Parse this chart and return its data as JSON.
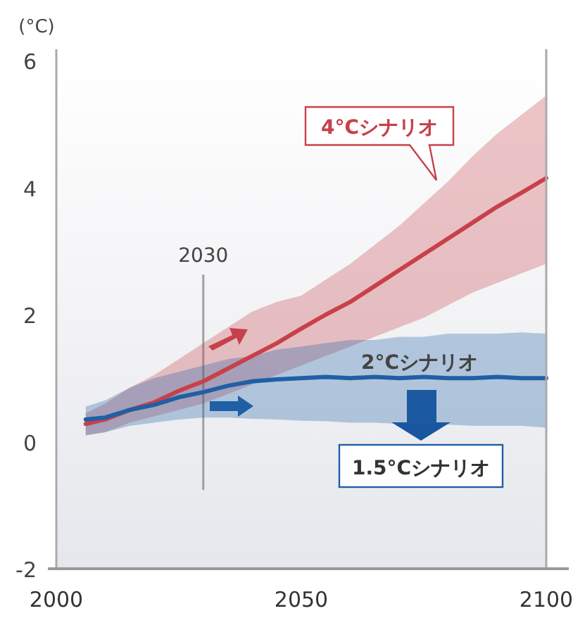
{
  "chart_data": {
    "type": "line",
    "ylabel": "(°C)",
    "x": [
      2006,
      2010,
      2015,
      2020,
      2025,
      2030,
      2035,
      2040,
      2045,
      2050,
      2055,
      2060,
      2065,
      2070,
      2075,
      2080,
      2085,
      2090,
      2095,
      2100
    ],
    "series": [
      {
        "name": "4°Cシナリオ",
        "color": "#c8414a",
        "values": [
          0.28,
          0.35,
          0.5,
          0.62,
          0.8,
          0.95,
          1.15,
          1.35,
          1.55,
          1.78,
          2.0,
          2.2,
          2.45,
          2.7,
          2.95,
          3.2,
          3.45,
          3.7,
          3.92,
          4.15
        ],
        "upper": [
          0.45,
          0.6,
          0.85,
          1.05,
          1.3,
          1.55,
          1.8,
          2.05,
          2.2,
          2.3,
          2.55,
          2.8,
          3.1,
          3.4,
          3.75,
          4.1,
          4.5,
          4.85,
          5.15,
          5.45
        ],
        "lower": [
          0.1,
          0.15,
          0.3,
          0.4,
          0.5,
          0.6,
          0.75,
          0.9,
          1.05,
          1.2,
          1.35,
          1.5,
          1.65,
          1.8,
          1.95,
          2.15,
          2.35,
          2.5,
          2.65,
          2.8
        ]
      },
      {
        "name": "2°Cシナリオ",
        "color": "#1f5fa6",
        "values": [
          0.35,
          0.38,
          0.5,
          0.58,
          0.7,
          0.78,
          0.88,
          0.95,
          0.98,
          1.0,
          1.02,
          1.0,
          1.02,
          1.0,
          1.02,
          1.0,
          1.0,
          1.02,
          1.0,
          1.0
        ],
        "upper": [
          0.55,
          0.65,
          0.85,
          1.0,
          1.1,
          1.2,
          1.3,
          1.35,
          1.45,
          1.5,
          1.55,
          1.6,
          1.6,
          1.65,
          1.65,
          1.7,
          1.7,
          1.7,
          1.72,
          1.7
        ],
        "lower": [
          0.1,
          0.15,
          0.25,
          0.3,
          0.35,
          0.38,
          0.38,
          0.36,
          0.35,
          0.33,
          0.32,
          0.3,
          0.3,
          0.28,
          0.28,
          0.27,
          0.25,
          0.25,
          0.25,
          0.22
        ]
      }
    ],
    "xlim": [
      2000,
      2100
    ],
    "xticks": [
      2000,
      2050,
      2100
    ],
    "ylim": [
      -2,
      6
    ],
    "yticks": [
      -2,
      0,
      2,
      4,
      6
    ],
    "ref_lines": [
      {
        "axis": "x",
        "value": 2030,
        "label": "2030",
        "color": "#a0a0a0"
      }
    ],
    "annotations": [
      "1.5°Cシナリオ"
    ]
  }
}
